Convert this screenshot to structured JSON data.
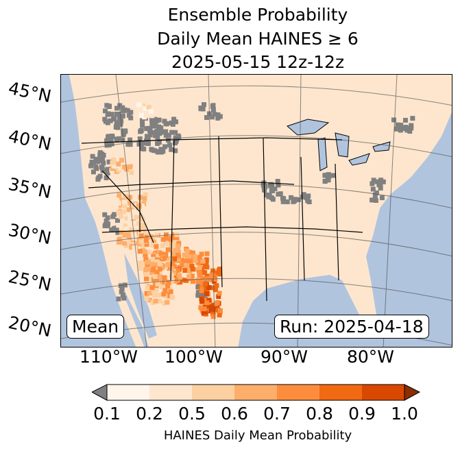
{
  "title": {
    "line1": "Ensemble Probability",
    "line2": "Daily Mean HAINES ≥ 6",
    "line3": "2025-05-15 12z-12z"
  },
  "map": {
    "lat_labels": [
      "45°N",
      "40°N",
      "35°N",
      "30°N",
      "25°N",
      "20°N"
    ],
    "lon_labels": [
      "110°W",
      "100°W",
      "90°W",
      "80°W"
    ],
    "stat_label": "Mean",
    "run_label": "Run: 2025-04-18",
    "ocean_color": "#b0c4de",
    "below_threshold_color": "#808080"
  },
  "colorbar": {
    "label": "HAINES Daily Mean Probability",
    "ticks": [
      "0.1",
      "0.2",
      "0.5",
      "0.6",
      "0.7",
      "0.8",
      "0.9",
      "1.0"
    ],
    "colors": [
      "#fff5eb",
      "#fee6ce",
      "#fdd0a2",
      "#fdae6b",
      "#fd8d3c",
      "#f16913",
      "#d94801"
    ],
    "under_color": "#808080",
    "over_color": "#8c2d04"
  }
}
